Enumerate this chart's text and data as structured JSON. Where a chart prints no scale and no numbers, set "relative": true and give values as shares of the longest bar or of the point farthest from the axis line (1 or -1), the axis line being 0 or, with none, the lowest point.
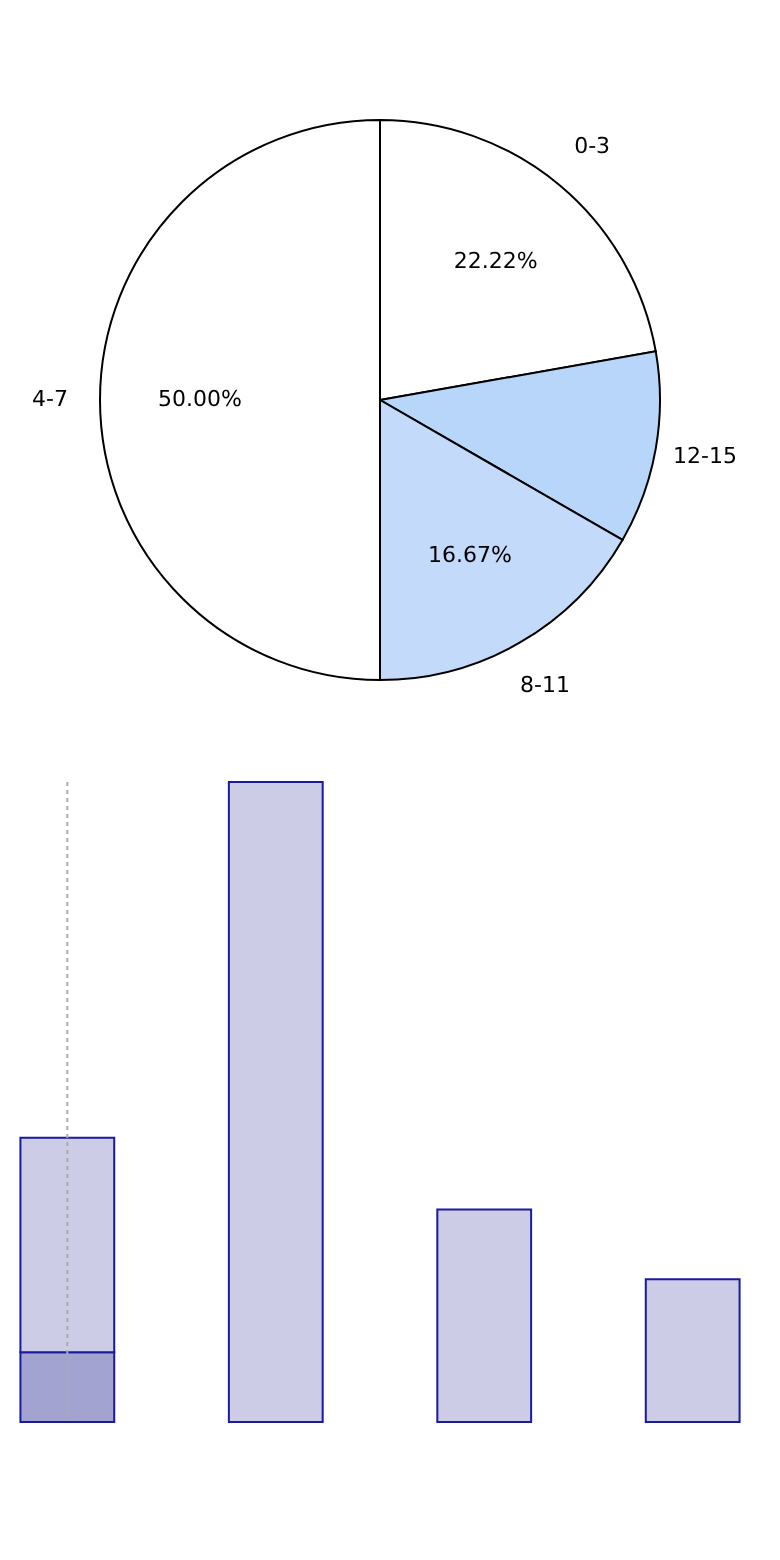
{
  "chart_data": [
    {
      "type": "pie",
      "categories": [
        "0-3",
        "12-15",
        "8-11",
        "4-7"
      ],
      "values": [
        22.22,
        11.11,
        16.67,
        50.0
      ],
      "colors": [
        "#ffffff",
        "#b8d6fa",
        "#c4dafa",
        "#ffffff"
      ],
      "value_labels": [
        "22.22%",
        null,
        "16.67%",
        "50.00%"
      ]
    },
    {
      "type": "bar",
      "relative": true,
      "stacked": true,
      "categories": [
        null,
        null,
        null,
        null
      ],
      "series": [
        {
          "color": "#a3a3d1",
          "values": [
            0.109,
            null,
            null,
            null
          ]
        },
        {
          "color": "#cccce6",
          "values": [
            0.335,
            1,
            0.332,
            0.223
          ]
        }
      ]
    }
  ]
}
